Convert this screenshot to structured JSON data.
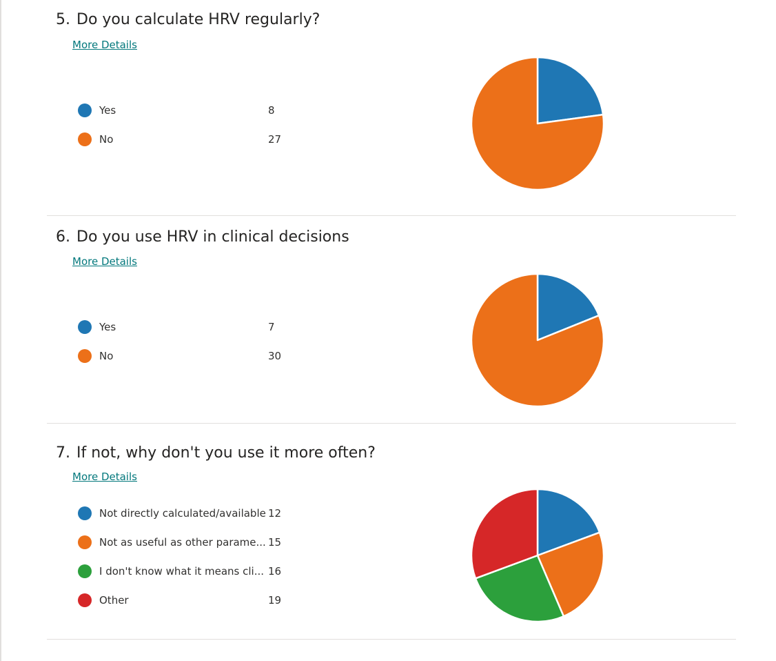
{
  "more_details_label": "More Details",
  "colors": {
    "blue": "#1f77b4",
    "orange": "#ec7019",
    "green": "#2ca03c",
    "red": "#d62728",
    "link": "#03787c"
  },
  "questions": [
    {
      "number": "5.",
      "title": "Do you calculate HRV regularly?",
      "legend": [
        {
          "label": "Yes",
          "count": "8"
        },
        {
          "label": "No",
          "count": "27"
        }
      ]
    },
    {
      "number": "6.",
      "title": "Do you use HRV in clinical decisions",
      "legend": [
        {
          "label": "Yes",
          "count": "7"
        },
        {
          "label": "No",
          "count": "30"
        }
      ]
    },
    {
      "number": "7.",
      "title": "If not, why don't you use it more often?",
      "legend": [
        {
          "label": "Not directly calculated/available",
          "count": "12"
        },
        {
          "label": "Not as useful as other parame...",
          "count": "15"
        },
        {
          "label": "I don't know what it means cli...",
          "count": "16"
        },
        {
          "label": "Other",
          "count": "19"
        }
      ]
    }
  ],
  "chart_data": [
    {
      "type": "pie",
      "categories": [
        "Yes",
        "No"
      ],
      "values": [
        8,
        27
      ],
      "colors": [
        "#1f77b4",
        "#ec7019"
      ]
    },
    {
      "type": "pie",
      "categories": [
        "Yes",
        "No"
      ],
      "values": [
        7,
        30
      ],
      "colors": [
        "#1f77b4",
        "#ec7019"
      ]
    },
    {
      "type": "pie",
      "categories": [
        "Not directly calculated/available",
        "Not as useful as other parame...",
        "I don't know what it means cli...",
        "Other"
      ],
      "values": [
        12,
        15,
        16,
        19
      ],
      "colors": [
        "#1f77b4",
        "#ec7019",
        "#2ca03c",
        "#d62728"
      ]
    }
  ]
}
